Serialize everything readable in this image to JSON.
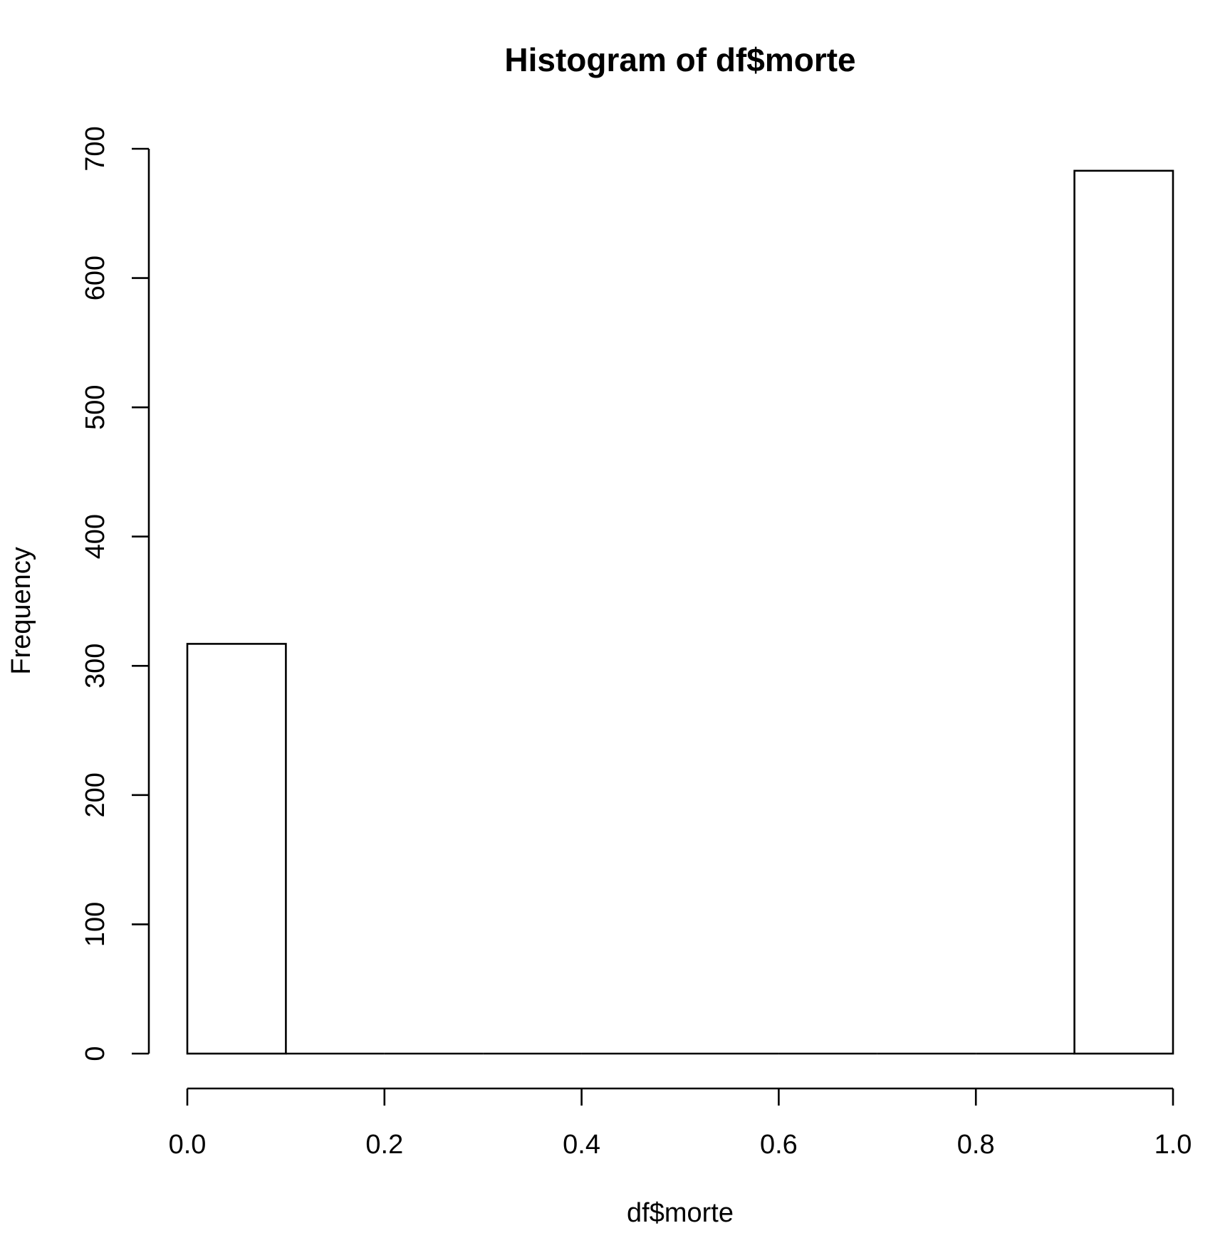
{
  "chart_data": {
    "type": "bar",
    "title": "Histogram of df$morte",
    "xlabel": "df$morte",
    "ylabel": "Frequency",
    "bins": [
      {
        "x0": 0.0,
        "x1": 0.1,
        "count": 317
      },
      {
        "x0": 0.1,
        "x1": 0.2,
        "count": 0
      },
      {
        "x0": 0.2,
        "x1": 0.3,
        "count": 0
      },
      {
        "x0": 0.3,
        "x1": 0.4,
        "count": 0
      },
      {
        "x0": 0.4,
        "x1": 0.5,
        "count": 0
      },
      {
        "x0": 0.5,
        "x1": 0.6,
        "count": 0
      },
      {
        "x0": 0.6,
        "x1": 0.7,
        "count": 0
      },
      {
        "x0": 0.7,
        "x1": 0.8,
        "count": 0
      },
      {
        "x0": 0.8,
        "x1": 0.9,
        "count": 0
      },
      {
        "x0": 0.9,
        "x1": 1.0,
        "count": 683
      }
    ],
    "xlim": [
      0.0,
      1.0
    ],
    "ylim": [
      0,
      700
    ],
    "x_ticks": [
      "0.0",
      "0.2",
      "0.4",
      "0.6",
      "0.8",
      "1.0"
    ],
    "y_ticks": [
      "0",
      "100",
      "200",
      "300",
      "400",
      "500",
      "600",
      "700"
    ],
    "grid": false,
    "legend": "none",
    "colors": {
      "bar_fill": "#ffffff",
      "bar_stroke": "#000000"
    }
  }
}
